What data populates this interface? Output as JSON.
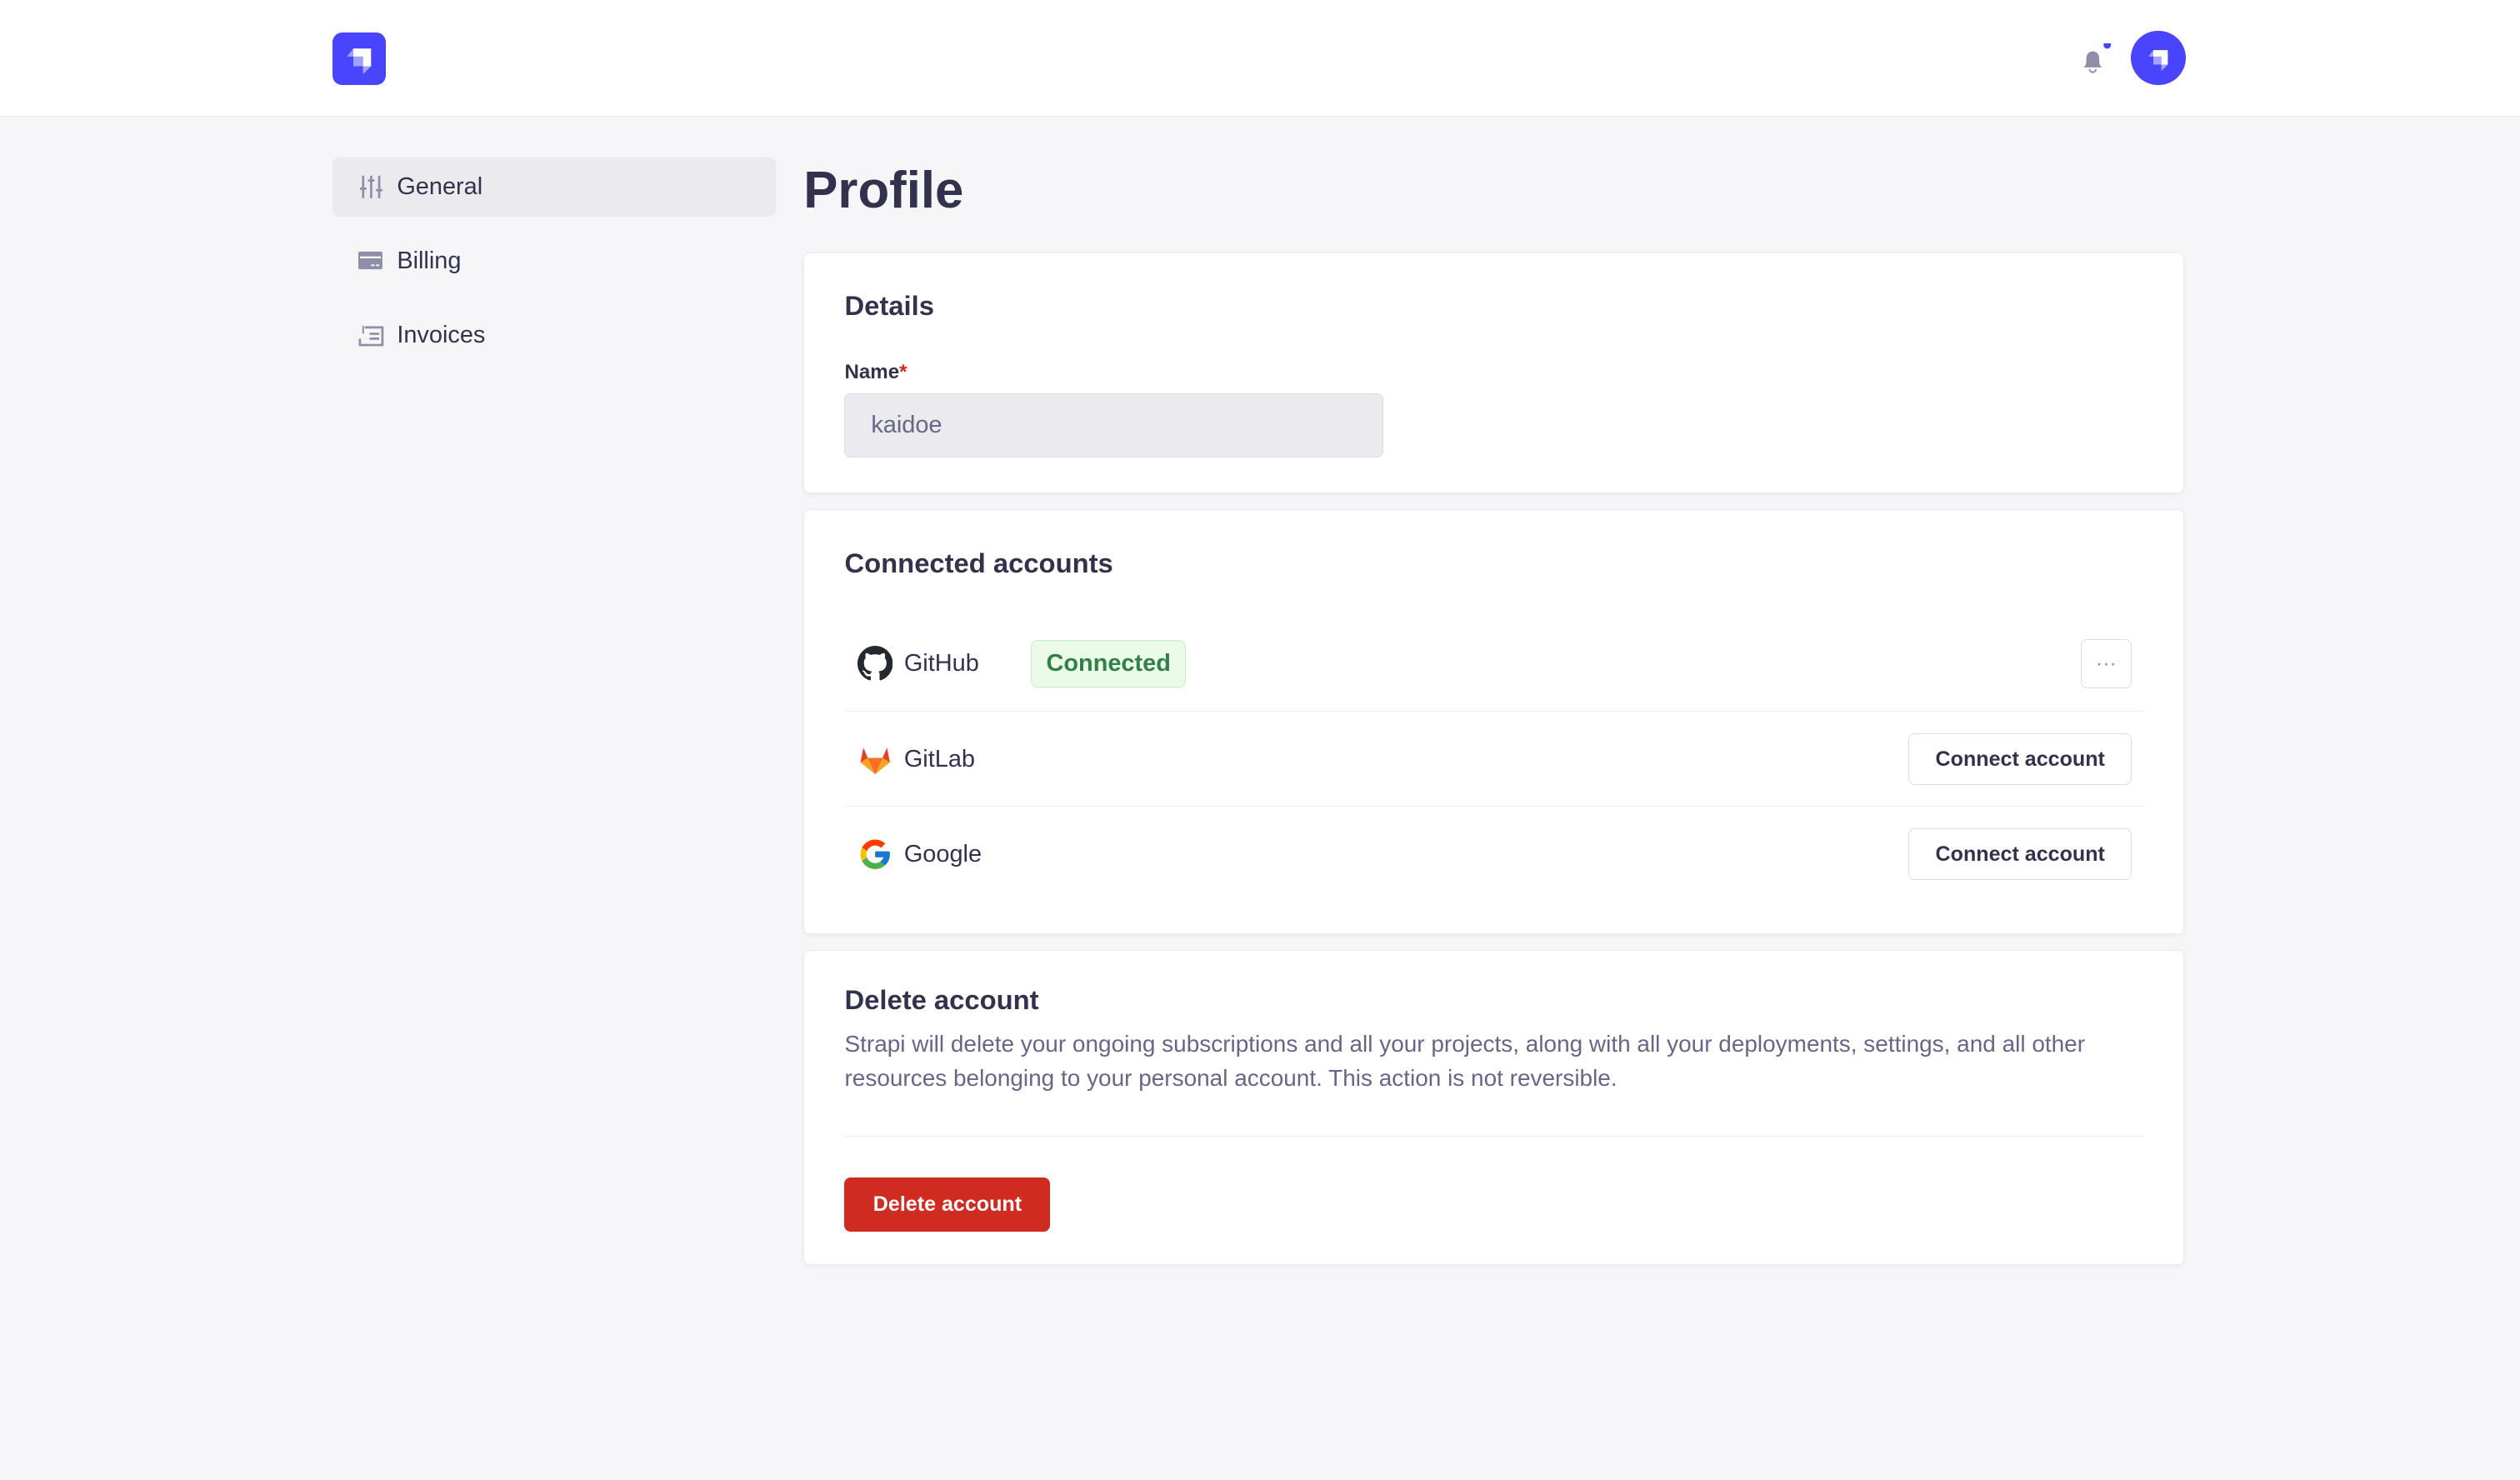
{
  "header": {
    "logo_icon": "strapi-logo",
    "notification_icon": "bell-icon",
    "has_notification": true,
    "avatar_icon": "strapi-logo",
    "accent": "#4945ff"
  },
  "sidebar": {
    "items": [
      {
        "label": "General",
        "icon": "sliders-icon",
        "active": true
      },
      {
        "label": "Billing",
        "icon": "credit-card-icon",
        "active": false
      },
      {
        "label": "Invoices",
        "icon": "invoice-icon",
        "active": false
      }
    ]
  },
  "page": {
    "title": "Profile"
  },
  "details": {
    "title": "Details",
    "name_label": "Name",
    "required_mark": "*",
    "name_value": "kaidoe"
  },
  "connected": {
    "title": "Connected accounts",
    "accounts": [
      {
        "name": "GitHub",
        "icon": "github-icon",
        "status": "Connected",
        "action": "···"
      },
      {
        "name": "GitLab",
        "icon": "gitlab-icon",
        "action": "Connect account"
      },
      {
        "name": "Google",
        "icon": "google-icon",
        "action": "Connect account"
      }
    ]
  },
  "delete": {
    "title": "Delete account",
    "description": "Strapi will delete your ongoing subscriptions and all your projects, along with all your deployments, settings, and all other resources belonging to your personal account. This action is not reversible.",
    "button": "Delete account",
    "danger": "#d02b20"
  }
}
